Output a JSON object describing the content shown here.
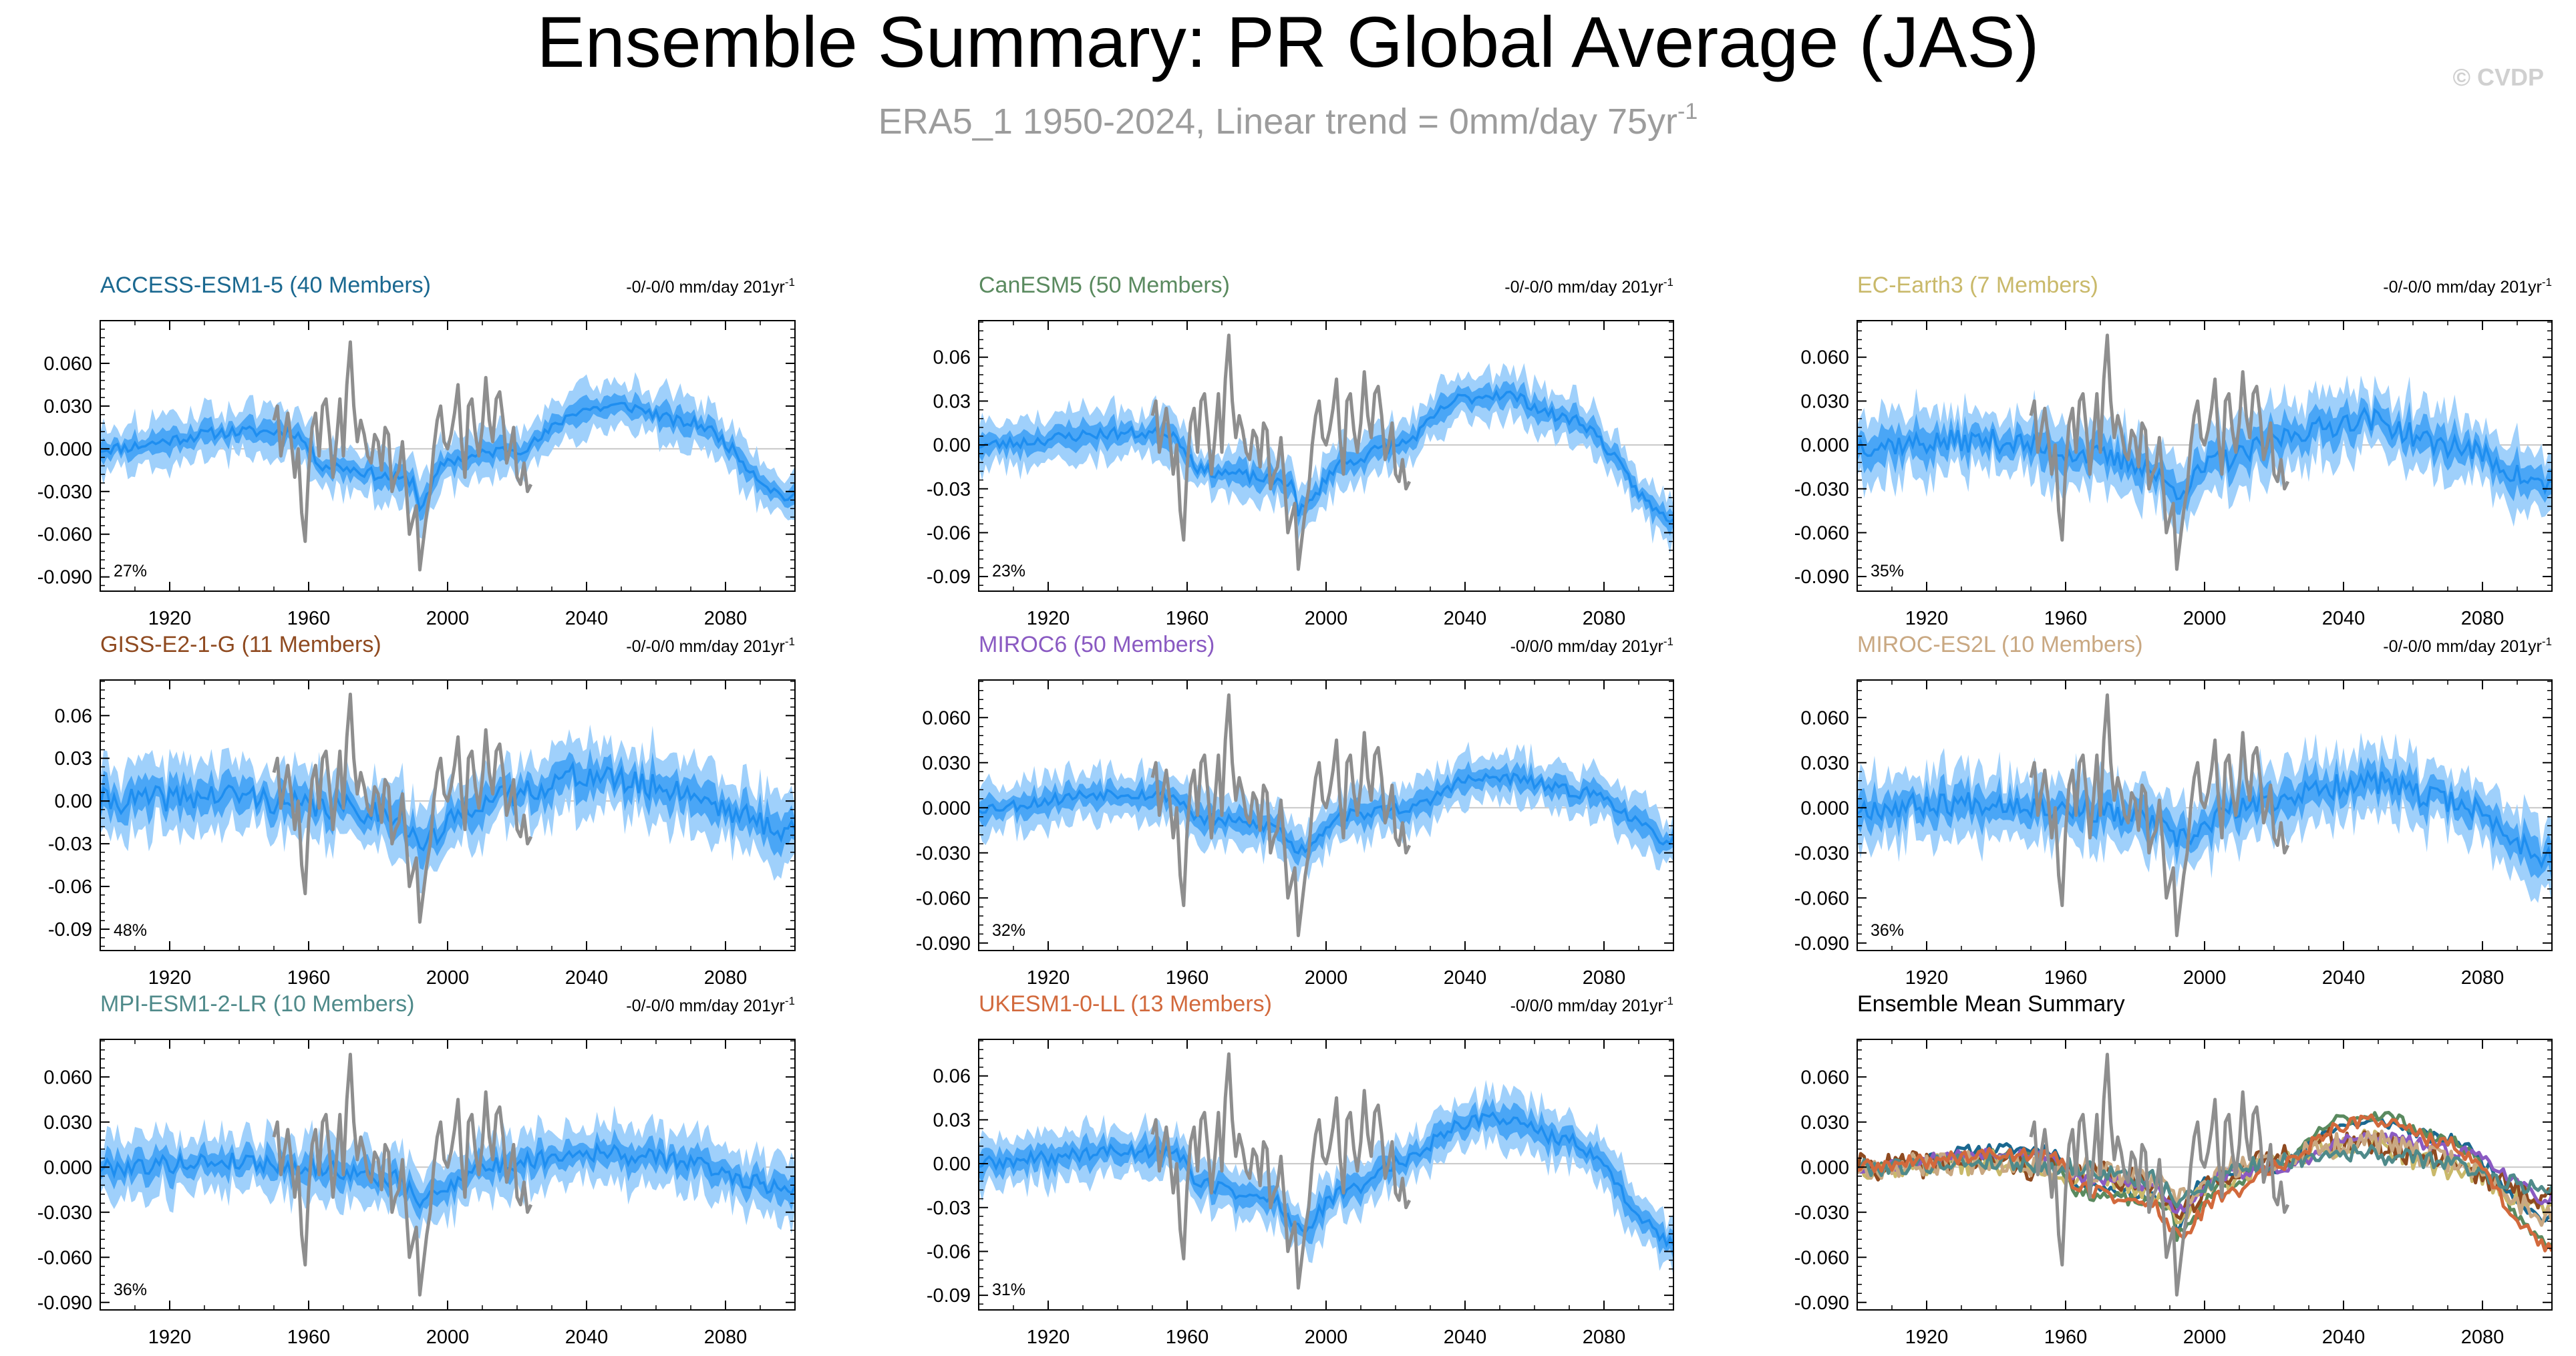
{
  "header": {
    "title": "Ensemble Summary: PR Global Average (JAS)",
    "subtitle_main": "ERA5_1 1950-2024, Linear trend = 0mm/day 75yr",
    "subtitle_sup": "-1",
    "watermark": "© CVDP"
  },
  "colors": {
    "title": "#000000",
    "subtitle": "#9c9c9c",
    "watermark": "#d0d0d0",
    "band_outer": "#9fd0fb",
    "band_inner": "#4aa6f6",
    "ens_mean": "#1e8ef0",
    "obs": "#8e8e8e",
    "zero_line": "#c8c8c8"
  },
  "chart_data": [
    {
      "id": "access",
      "type": "line",
      "title": "ACCESS-ESM1-5 (40 Members)",
      "title_color": "#1a6890",
      "trend_main": "-0/-0/0 mm/day 201yr",
      "trend_sup": "-1",
      "percent": "27%",
      "xlim": [
        1900,
        2100
      ],
      "ylim": [
        -0.1,
        0.09
      ],
      "xticks": [
        "1920",
        "1960",
        "2000",
        "2040",
        "2080"
      ],
      "yticks": [
        "0.060",
        "0.030",
        "0.000",
        "-0.030",
        "-0.060",
        "-0.090"
      ],
      "ytick_values": [
        0.06,
        0.03,
        0.0,
        -0.03,
        -0.06,
        -0.09
      ],
      "obs_x": [
        1950,
        2024
      ],
      "mean_knots": [
        [
          1900,
          0
        ],
        [
          1940,
          0.012
        ],
        [
          1955,
          0.012
        ],
        [
          1965,
          -0.012
        ],
        [
          1990,
          -0.022
        ],
        [
          1992,
          -0.04
        ],
        [
          2000,
          -0.008
        ],
        [
          2020,
          0.0
        ],
        [
          2040,
          0.028
        ],
        [
          2050,
          0.03
        ],
        [
          2070,
          0.018
        ],
        [
          2100,
          -0.035
        ]
      ],
      "inner_width": 0.007,
      "outer_width": 0.017,
      "noise": 0.004,
      "seed": 11
    },
    {
      "id": "canesm",
      "type": "line",
      "title": "CanESM5 (50 Members)",
      "title_color": "#5a8a5f",
      "trend_main": "-0/-0/0 mm/day 201yr",
      "trend_sup": "-1",
      "percent": "23%",
      "xlim": [
        1900,
        2100
      ],
      "ylim": [
        -0.1,
        0.085
      ],
      "xticks": [
        "1920",
        "1960",
        "2000",
        "2040",
        "2080"
      ],
      "yticks": [
        "0.06",
        "0.03",
        "0.00",
        "-0.03",
        "-0.06",
        "-0.09"
      ],
      "ytick_values": [
        0.06,
        0.03,
        0.0,
        -0.03,
        -0.06,
        -0.09
      ],
      "obs_x": [
        1950,
        2024
      ],
      "mean_knots": [
        [
          1900,
          0
        ],
        [
          1940,
          0.008
        ],
        [
          1955,
          0.008
        ],
        [
          1965,
          -0.018
        ],
        [
          1990,
          -0.025
        ],
        [
          1992,
          -0.045
        ],
        [
          2005,
          -0.012
        ],
        [
          2020,
          0.0
        ],
        [
          2040,
          0.032
        ],
        [
          2050,
          0.035
        ],
        [
          2070,
          0.018
        ],
        [
          2100,
          -0.05
        ]
      ],
      "inner_width": 0.007,
      "outer_width": 0.016,
      "noise": 0.004,
      "seed": 23
    },
    {
      "id": "ecearth",
      "type": "line",
      "title": "EC-Earth3 (7 Members)",
      "title_color": "#c9b96a",
      "trend_main": "-0/-0/0 mm/day 201yr",
      "trend_sup": "-1",
      "percent": "35%",
      "xlim": [
        1900,
        2100
      ],
      "ylim": [
        -0.1,
        0.085
      ],
      "xticks": [
        "1920",
        "1960",
        "2000",
        "2040",
        "2080"
      ],
      "yticks": [
        "0.060",
        "0.030",
        "0.000",
        "-0.030",
        "-0.060",
        "-0.090"
      ],
      "ytick_values": [
        0.06,
        0.03,
        0.0,
        -0.03,
        -0.06,
        -0.09
      ],
      "obs_x": [
        1950,
        2024
      ],
      "mean_knots": [
        [
          1900,
          0
        ],
        [
          1940,
          0.003
        ],
        [
          1960,
          -0.005
        ],
        [
          1980,
          -0.012
        ],
        [
          1992,
          -0.03
        ],
        [
          2005,
          -0.01
        ],
        [
          2030,
          0.01
        ],
        [
          2045,
          0.018
        ],
        [
          2070,
          0.0
        ],
        [
          2100,
          -0.028
        ]
      ],
      "inner_width": 0.01,
      "outer_width": 0.022,
      "noise": 0.008,
      "seed": 37
    },
    {
      "id": "giss",
      "type": "line",
      "title": "GISS-E2-1-G (11 Members)",
      "title_color": "#8f4a20",
      "trend_main": "-0/-0/0 mm/day 201yr",
      "trend_sup": "-1",
      "percent": "48%",
      "xlim": [
        1900,
        2100
      ],
      "ylim": [
        -0.105,
        0.085
      ],
      "xticks": [
        "1920",
        "1960",
        "2000",
        "2040",
        "2080"
      ],
      "yticks": [
        "0.06",
        "0.03",
        "0.00",
        "-0.03",
        "-0.06",
        "-0.09"
      ],
      "ytick_values": [
        0.06,
        0.03,
        0.0,
        -0.03,
        -0.06,
        -0.09
      ],
      "obs_x": [
        1950,
        2024
      ],
      "mean_knots": [
        [
          1900,
          0
        ],
        [
          1940,
          0.004
        ],
        [
          1960,
          -0.004
        ],
        [
          1985,
          -0.008
        ],
        [
          1992,
          -0.03
        ],
        [
          2010,
          0.0
        ],
        [
          2040,
          0.018
        ],
        [
          2060,
          0.01
        ],
        [
          2100,
          -0.02
        ]
      ],
      "inner_width": 0.011,
      "outer_width": 0.024,
      "noise": 0.009,
      "seed": 41
    },
    {
      "id": "miroc6",
      "type": "line",
      "title": "MIROC6 (50 Members)",
      "title_color": "#8a5ac2",
      "trend_main": "-0/0/0 mm/day 201yr",
      "trend_sup": "-1",
      "percent": "32%",
      "xlim": [
        1900,
        2100
      ],
      "ylim": [
        -0.095,
        0.085
      ],
      "xticks": [
        "1920",
        "1960",
        "2000",
        "2040",
        "2080"
      ],
      "yticks": [
        "0.060",
        "0.030",
        "0.000",
        "-0.030",
        "-0.060",
        "-0.090"
      ],
      "ytick_values": [
        0.06,
        0.03,
        0.0,
        -0.03,
        -0.06,
        -0.09
      ],
      "obs_x": [
        1950,
        2024
      ],
      "mean_knots": [
        [
          1900,
          0
        ],
        [
          1940,
          0.01
        ],
        [
          1955,
          0.008
        ],
        [
          1965,
          -0.008
        ],
        [
          1985,
          -0.012
        ],
        [
          1992,
          -0.028
        ],
        [
          2005,
          -0.005
        ],
        [
          2025,
          0.0
        ],
        [
          2040,
          0.018
        ],
        [
          2050,
          0.02
        ],
        [
          2075,
          0.01
        ],
        [
          2100,
          -0.022
        ]
      ],
      "inner_width": 0.007,
      "outer_width": 0.016,
      "noise": 0.004,
      "seed": 53
    },
    {
      "id": "mirocesl",
      "type": "line",
      "title": "MIROC-ES2L (10 Members)",
      "title_color": "#c9a882",
      "trend_main": "-0/-0/0 mm/day 201yr",
      "trend_sup": "-1",
      "percent": "36%",
      "xlim": [
        1900,
        2100
      ],
      "ylim": [
        -0.095,
        0.085
      ],
      "xticks": [
        "1920",
        "1960",
        "2000",
        "2040",
        "2080"
      ],
      "yticks": [
        "0.060",
        "0.030",
        "0.000",
        "-0.030",
        "-0.060",
        "-0.090"
      ],
      "ytick_values": [
        0.06,
        0.03,
        0.0,
        -0.03,
        -0.06,
        -0.09
      ],
      "obs_x": [
        1950,
        2024
      ],
      "mean_knots": [
        [
          1900,
          0
        ],
        [
          1940,
          0.004
        ],
        [
          1960,
          0.0
        ],
        [
          1985,
          -0.008
        ],
        [
          1992,
          -0.022
        ],
        [
          2010,
          0.0
        ],
        [
          2030,
          0.01
        ],
        [
          2045,
          0.018
        ],
        [
          2070,
          0.005
        ],
        [
          2100,
          -0.032
        ]
      ],
      "inner_width": 0.01,
      "outer_width": 0.022,
      "noise": 0.008,
      "seed": 67
    },
    {
      "id": "mpi",
      "type": "line",
      "title": "MPI-ESM1-2-LR (10 Members)",
      "title_color": "#4f8a8a",
      "trend_main": "-0/-0/0 mm/day 201yr",
      "trend_sup": "-1",
      "percent": "36%",
      "xlim": [
        1900,
        2100
      ],
      "ylim": [
        -0.095,
        0.085
      ],
      "xticks": [
        "1920",
        "1960",
        "2000",
        "2040",
        "2080"
      ],
      "yticks": [
        "0.060",
        "0.030",
        "0.000",
        "-0.030",
        "-0.060",
        "-0.090"
      ],
      "ytick_values": [
        0.06,
        0.03,
        0.0,
        -0.03,
        -0.06,
        -0.09
      ],
      "obs_x": [
        1950,
        2024
      ],
      "mean_knots": [
        [
          1900,
          0
        ],
        [
          1940,
          0.004
        ],
        [
          1960,
          0.0
        ],
        [
          1985,
          -0.008
        ],
        [
          1992,
          -0.022
        ],
        [
          2010,
          0.0
        ],
        [
          2040,
          0.01
        ],
        [
          2060,
          0.006
        ],
        [
          2100,
          -0.014
        ]
      ],
      "inner_width": 0.008,
      "outer_width": 0.019,
      "noise": 0.006,
      "seed": 79
    },
    {
      "id": "ukesm",
      "type": "line",
      "title": "UKESM1-0-LL (13 Members)",
      "title_color": "#d2693c",
      "trend_main": "-0/0/0 mm/day 201yr",
      "trend_sup": "-1",
      "percent": "31%",
      "xlim": [
        1900,
        2100
      ],
      "ylim": [
        -0.1,
        0.085
      ],
      "xticks": [
        "1920",
        "1960",
        "2000",
        "2040",
        "2080"
      ],
      "yticks": [
        "0.06",
        "0.03",
        "0.00",
        "-0.03",
        "-0.06",
        "-0.09"
      ],
      "ytick_values": [
        0.06,
        0.03,
        0.0,
        -0.03,
        -0.06,
        -0.09
      ],
      "obs_x": [
        1950,
        2024
      ],
      "mean_knots": [
        [
          1900,
          0
        ],
        [
          1940,
          0.008
        ],
        [
          1955,
          0.01
        ],
        [
          1965,
          -0.015
        ],
        [
          1985,
          -0.025
        ],
        [
          1992,
          -0.045
        ],
        [
          2005,
          -0.02
        ],
        [
          2020,
          0.0
        ],
        [
          2040,
          0.028
        ],
        [
          2050,
          0.032
        ],
        [
          2070,
          0.015
        ],
        [
          2100,
          -0.052
        ]
      ],
      "inner_width": 0.008,
      "outer_width": 0.017,
      "noise": 0.005,
      "seed": 89
    },
    {
      "id": "summary",
      "type": "multi-line",
      "title": "Ensemble Mean Summary",
      "title_color": "#000000",
      "trend_main": "",
      "trend_sup": "",
      "percent": "",
      "xlim": [
        1900,
        2100
      ],
      "ylim": [
        -0.095,
        0.085
      ],
      "xticks": [
        "1920",
        "1960",
        "2000",
        "2040",
        "2080"
      ],
      "yticks": [
        "0.060",
        "0.030",
        "0.000",
        "-0.030",
        "-0.060",
        "-0.090"
      ],
      "ytick_values": [
        0.06,
        0.03,
        0.0,
        -0.03,
        -0.06,
        -0.09
      ],
      "obs_x": [
        1950,
        2024
      ],
      "series": [
        {
          "name": "ACCESS-ESM1-5",
          "color": "#1a6890",
          "ref": "access"
        },
        {
          "name": "CanESM5",
          "color": "#5a8a5f",
          "ref": "canesm"
        },
        {
          "name": "EC-Earth3",
          "color": "#c9b96a",
          "ref": "ecearth"
        },
        {
          "name": "GISS-E2-1-G",
          "color": "#8f4a20",
          "ref": "giss"
        },
        {
          "name": "MIROC6",
          "color": "#8a5ac2",
          "ref": "miroc6"
        },
        {
          "name": "MIROC-ES2L",
          "color": "#c9a882",
          "ref": "mirocesl"
        },
        {
          "name": "MPI-ESM1-2-LR",
          "color": "#4f8a8a",
          "ref": "mpi"
        },
        {
          "name": "UKESM1-0-LL",
          "color": "#d2693c",
          "ref": "ukesm"
        }
      ]
    }
  ],
  "observations": {
    "name": "ERA5_1",
    "years": [
      1950,
      1951,
      1952,
      1953,
      1954,
      1955,
      1956,
      1957,
      1958,
      1959,
      1960,
      1961,
      1962,
      1963,
      1964,
      1965,
      1966,
      1967,
      1968,
      1969,
      1970,
      1971,
      1972,
      1973,
      1974,
      1975,
      1976,
      1977,
      1978,
      1979,
      1980,
      1981,
      1982,
      1983,
      1984,
      1985,
      1986,
      1987,
      1988,
      1989,
      1990,
      1991,
      1992,
      1993,
      1994,
      1995,
      1996,
      1997,
      1998,
      1999,
      2000,
      2001,
      2002,
      2003,
      2004,
      2005,
      2006,
      2007,
      2008,
      2009,
      2010,
      2011,
      2012,
      2013,
      2014,
      2015,
      2016,
      2017,
      2018,
      2019,
      2020,
      2021,
      2022,
      2023,
      2024
    ],
    "values": [
      0.02,
      0.03,
      -0.005,
      0.01,
      0.025,
      0.005,
      -0.02,
      0.0,
      -0.045,
      -0.065,
      -0.015,
      0.015,
      0.025,
      -0.005,
      0.03,
      0.035,
      0.01,
      -0.02,
      0.005,
      0.035,
      -0.005,
      0.045,
      0.075,
      0.03,
      0.005,
      0.02,
      0.01,
      -0.005,
      -0.01,
      0.01,
      0.005,
      -0.015,
      0.015,
      0.01,
      -0.03,
      -0.02,
      -0.015,
      0.005,
      -0.025,
      -0.06,
      -0.05,
      -0.04,
      -0.085,
      -0.065,
      -0.045,
      -0.03,
      0.0,
      0.02,
      0.03,
      0.005,
      0.0,
      0.01,
      0.025,
      0.045,
      0.005,
      -0.02,
      0.03,
      0.035,
      0.01,
      -0.005,
      0.015,
      0.05,
      0.02,
      0.005,
      0.035,
      0.04,
      0.02,
      -0.01,
      0.0,
      0.015,
      -0.02,
      -0.025,
      -0.01,
      -0.03,
      -0.025
    ]
  }
}
